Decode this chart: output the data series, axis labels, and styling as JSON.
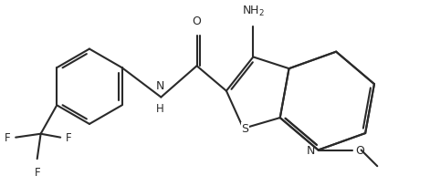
{
  "bg_color": "#ffffff",
  "line_color": "#2a2a2a",
  "lw": 1.5,
  "figsize": [
    4.71,
    2.05
  ],
  "dpi": 100,
  "xlim": [
    0,
    4.71
  ],
  "ylim": [
    0,
    2.05
  ]
}
